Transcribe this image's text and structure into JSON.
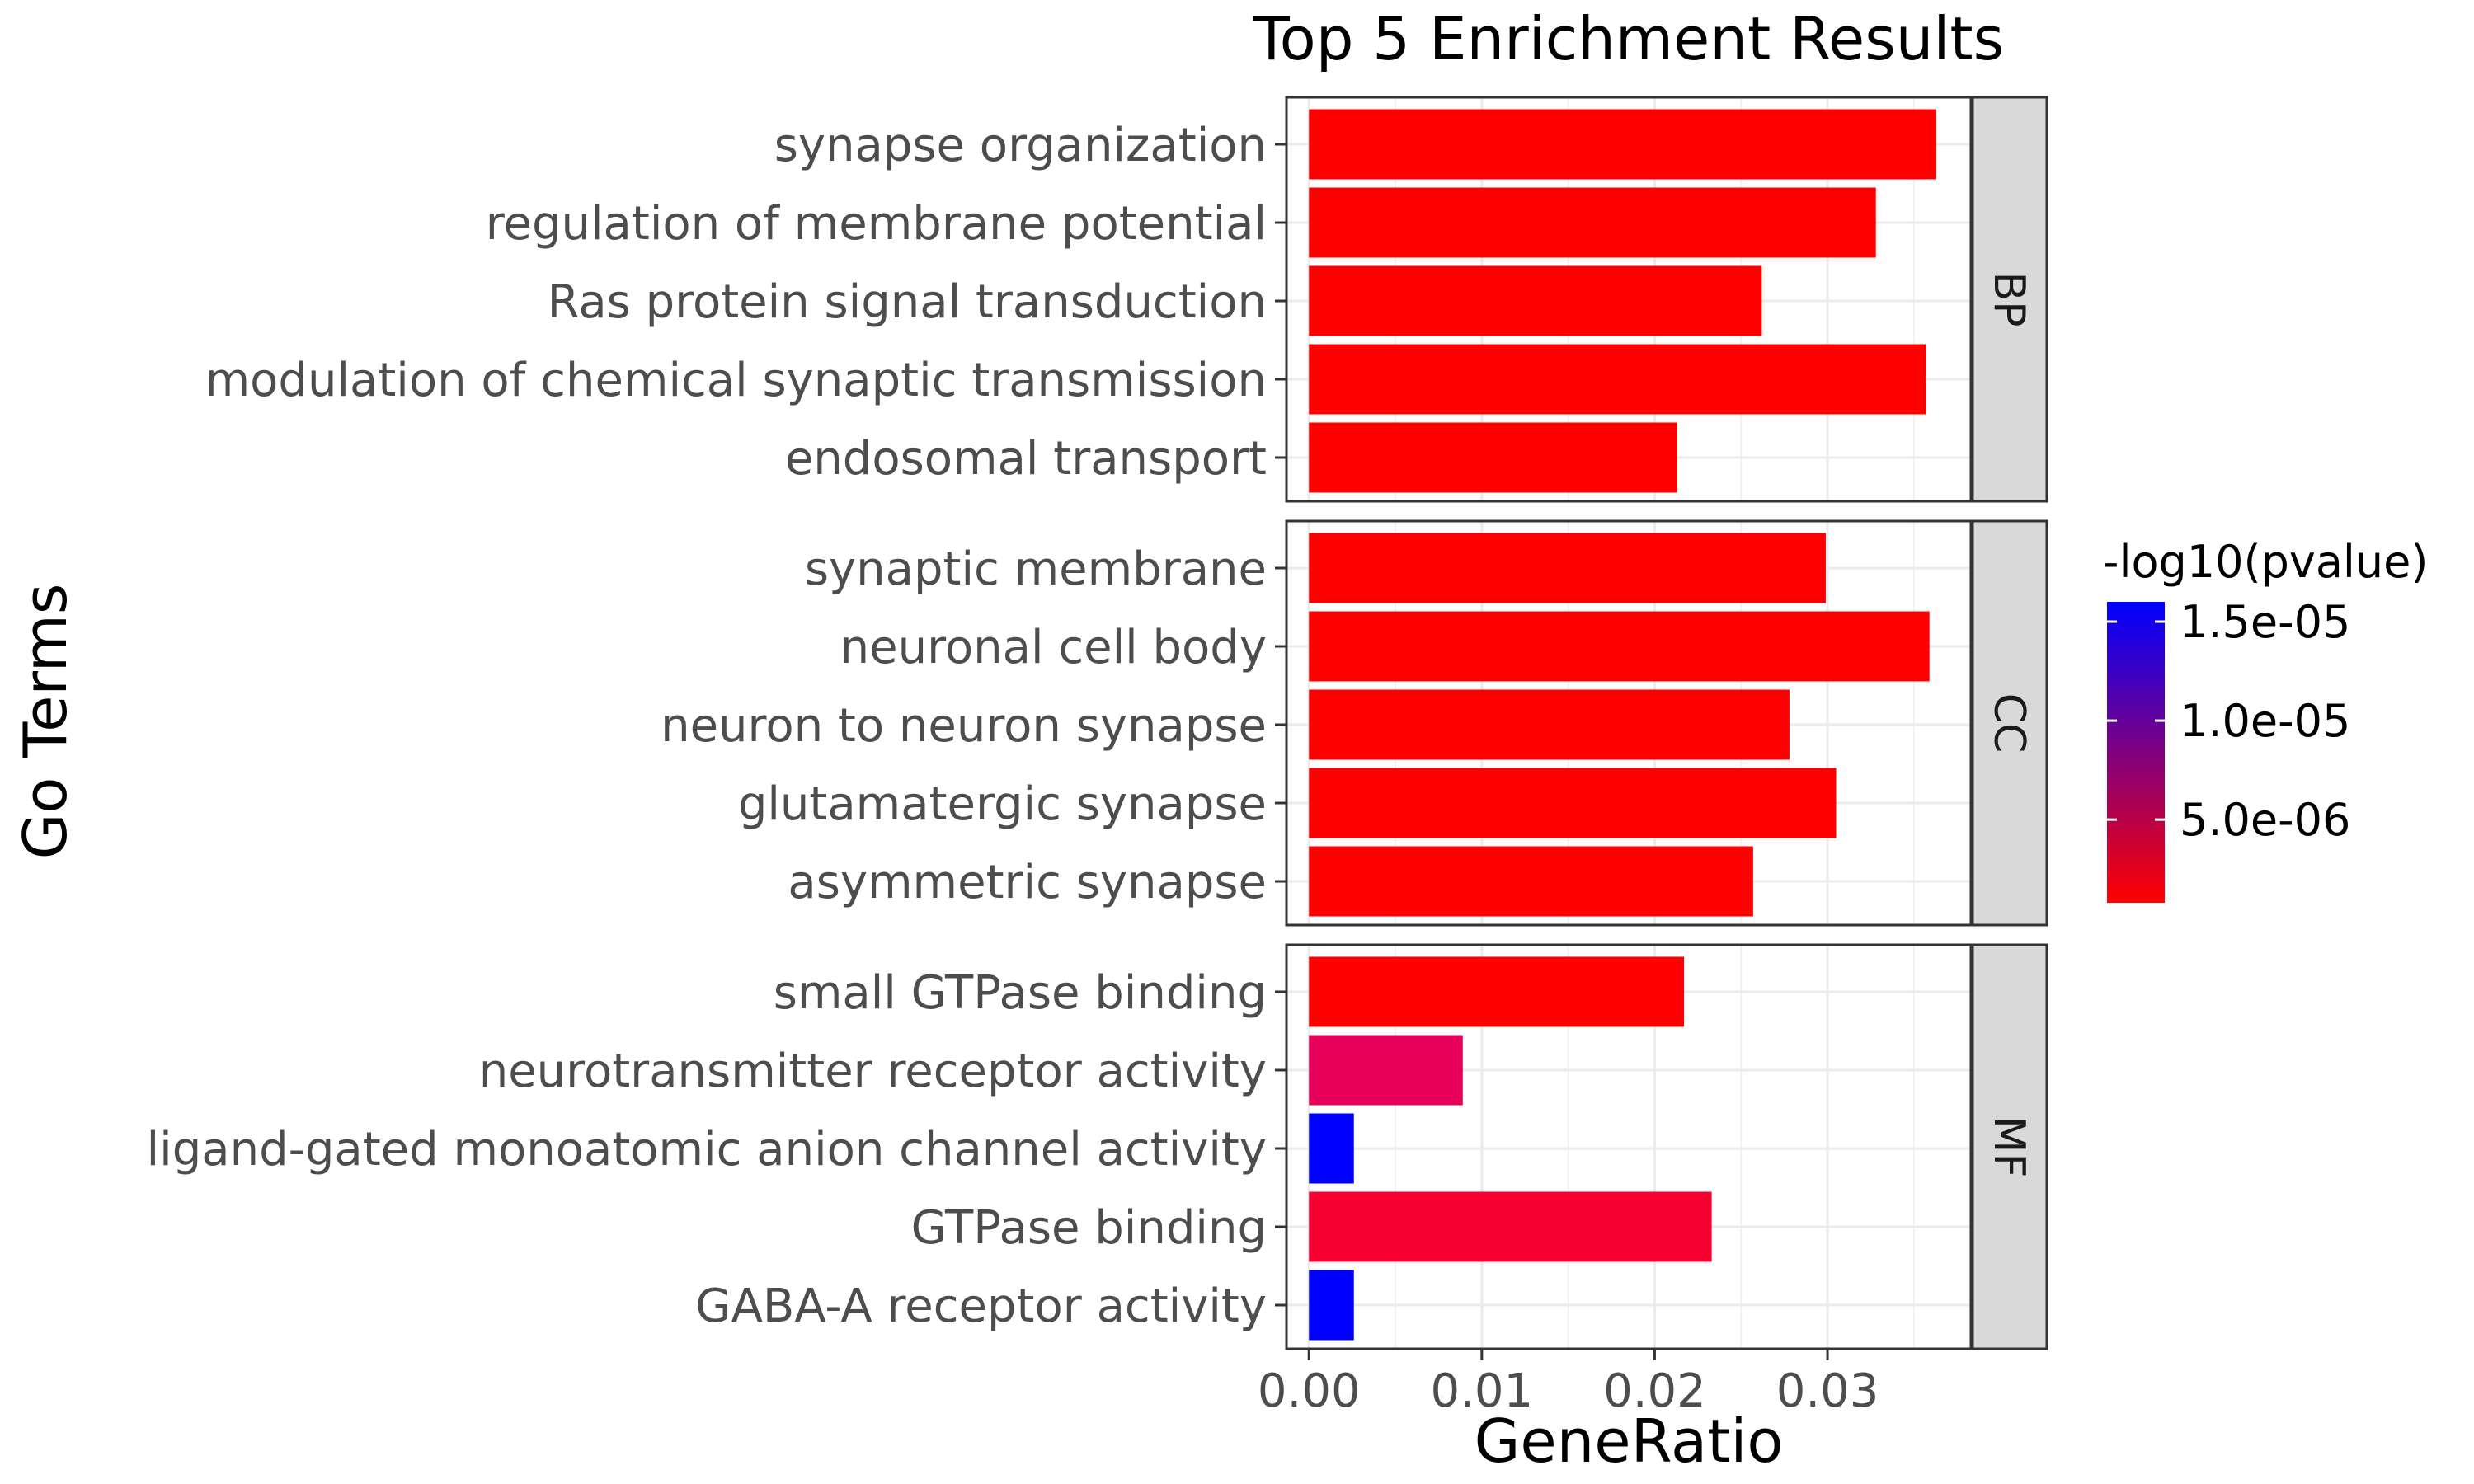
{
  "chart_data": {
    "type": "bar",
    "orientation": "horizontal",
    "title": "Top 5 Enrichment Results",
    "xlabel": "GeneRatio",
    "ylabel": "Go Terms",
    "xlim": [
      -0.0013,
      0.0383
    ],
    "xticks": [
      0.0,
      0.01,
      0.02,
      0.03
    ],
    "xtick_labels": [
      "0.00",
      "0.01",
      "0.02",
      "0.03"
    ],
    "grid": true,
    "facets": [
      {
        "label": "BP",
        "categories": [
          "synapse organization",
          "regulation of membrane potential",
          "Ras protein signal transduction",
          "modulation of chemical synaptic transmission",
          "endosomal transport"
        ],
        "values": [
          0.0363,
          0.0328,
          0.0262,
          0.0357,
          0.0213
        ],
        "colors": [
          "#ff0000",
          "#ff0000",
          "#ff0000",
          "#ff0000",
          "#ff0000"
        ]
      },
      {
        "label": "CC",
        "categories": [
          "synaptic membrane",
          "neuronal cell body",
          "neuron to neuron synapse",
          "glutamatergic synapse",
          "asymmetric synapse"
        ],
        "values": [
          0.0299,
          0.0359,
          0.0278,
          0.0305,
          0.0257
        ],
        "colors": [
          "#ff0000",
          "#ff0000",
          "#ff0000",
          "#ff0000",
          "#ff0000"
        ]
      },
      {
        "label": "MF",
        "categories": [
          "small GTPase binding",
          "neurotransmitter receptor activity",
          "ligand-gated monoatomic anion channel activity",
          "GTPase binding",
          "GABA-A receptor activity"
        ],
        "values": [
          0.0217,
          0.0089,
          0.0026,
          0.0233,
          0.0026
        ],
        "colors": [
          "#ff0000",
          "#e6005a",
          "#0000ff",
          "#f50030",
          "#0000ff"
        ]
      }
    ],
    "legend": {
      "title": "-log10(pvalue)",
      "placement": "right",
      "colors": [
        "#ff0000",
        "#0000ff"
      ],
      "ticks": [
        {
          "value": 1.5e-05,
          "label": "1.5e-05"
        },
        {
          "value": 1e-05,
          "label": "1.0e-05"
        },
        {
          "value": 5e-06,
          "label": "5.0e-06"
        }
      ],
      "range": [
        8e-07,
        1.6e-05
      ]
    }
  }
}
